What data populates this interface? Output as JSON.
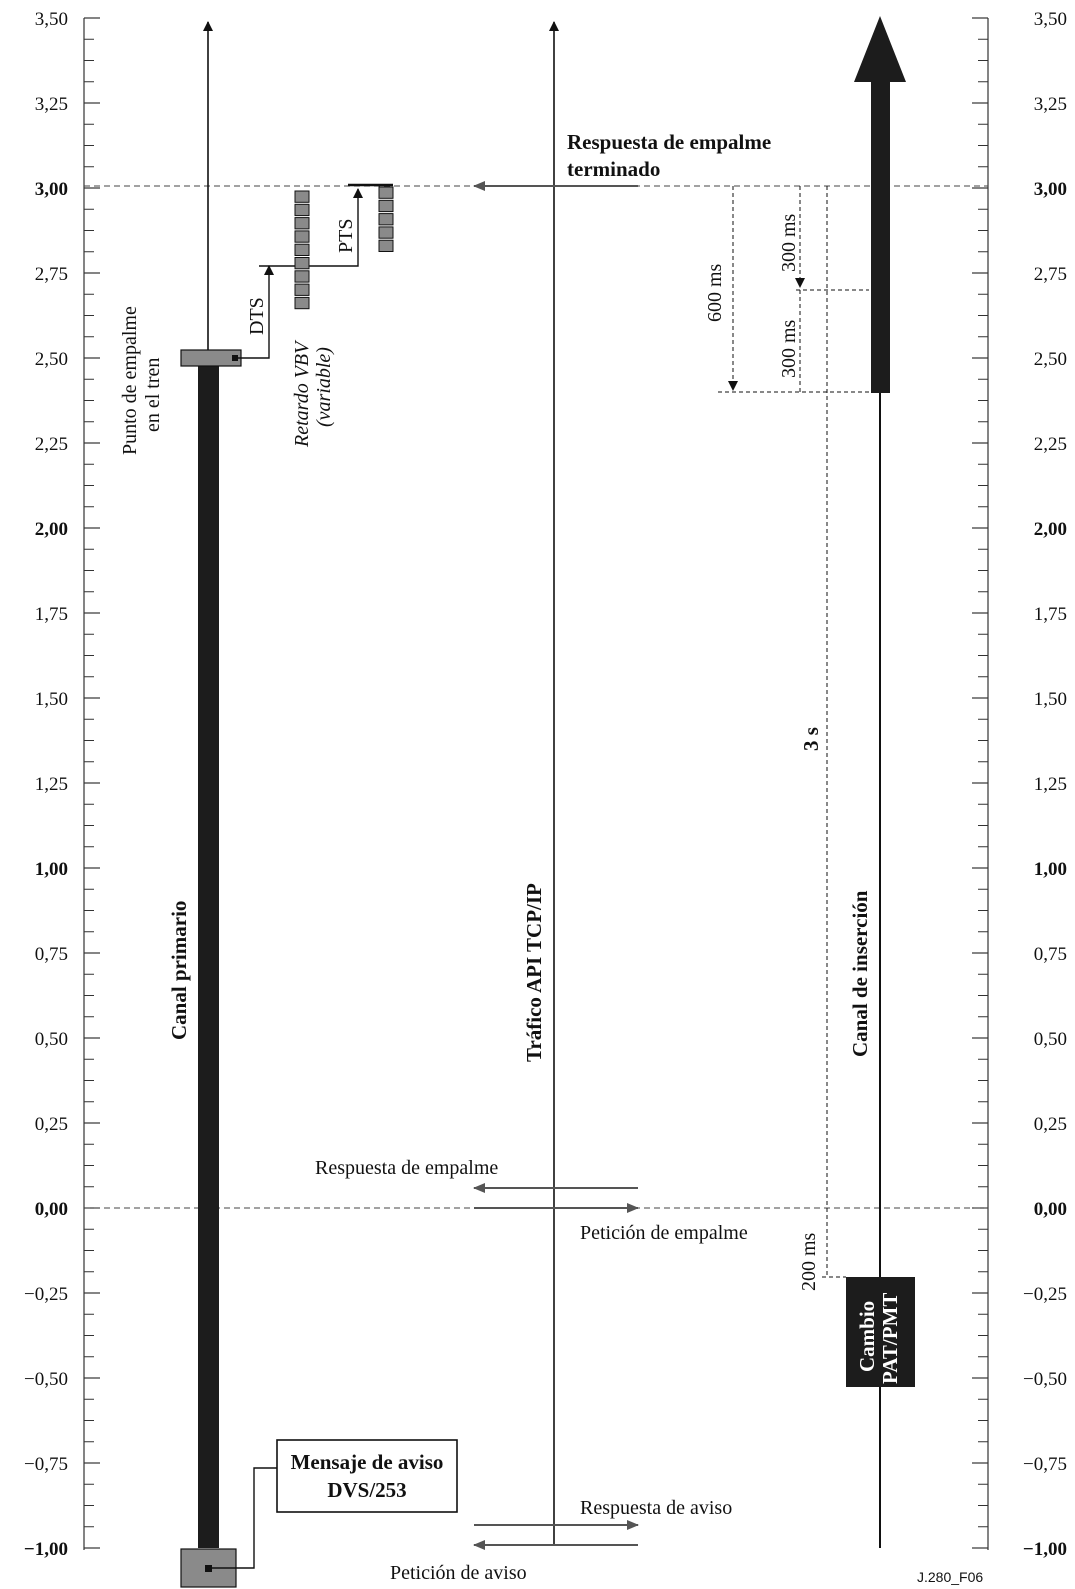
{
  "axis": {
    "ticks": [
      {
        "v": 3.5,
        "label": "3,50",
        "bold": false
      },
      {
        "v": 3.25,
        "label": "3,25",
        "bold": false
      },
      {
        "v": 3.0,
        "label": "3,00",
        "bold": true
      },
      {
        "v": 2.75,
        "label": "2,75",
        "bold": false
      },
      {
        "v": 2.5,
        "label": "2,50",
        "bold": false
      },
      {
        "v": 2.25,
        "label": "2,25",
        "bold": false
      },
      {
        "v": 2.0,
        "label": "2,00",
        "bold": true
      },
      {
        "v": 1.75,
        "label": "1,75",
        "bold": false
      },
      {
        "v": 1.5,
        "label": "1,50",
        "bold": false
      },
      {
        "v": 1.25,
        "label": "1,25",
        "bold": false
      },
      {
        "v": 1.0,
        "label": "1,00",
        "bold": true
      },
      {
        "v": 0.75,
        "label": "0,75",
        "bold": false
      },
      {
        "v": 0.5,
        "label": "0,50",
        "bold": false
      },
      {
        "v": 0.25,
        "label": "0,25",
        "bold": false
      },
      {
        "v": 0.0,
        "label": "0,00",
        "bold": true
      },
      {
        "v": -0.25,
        "label": "−0,25",
        "bold": false
      },
      {
        "v": -0.5,
        "label": "−0,50",
        "bold": false
      },
      {
        "v": -0.75,
        "label": "−0,75",
        "bold": false
      },
      {
        "v": -1.0,
        "label": "−1,00",
        "bold": true
      }
    ]
  },
  "lanes": {
    "primary": "Canal primario",
    "api": "Tráfico API TCP/IP",
    "insertion": "Canal de inserción"
  },
  "labels": {
    "splice_point_line1": "Punto de empalme",
    "splice_point_line2": "en el tren",
    "dts": "DTS",
    "pts": "PTS",
    "vbv_line1": "Retardo VBV",
    "vbv_line2": "(variable)",
    "splice_done_line1": "Respuesta de empalme",
    "splice_done_line2": "terminado",
    "ms600": "600 ms",
    "ms300_top": "300 ms",
    "ms300_bottom": "300 ms",
    "s3": "3 s",
    "ms200": "200 ms",
    "splice_response": "Respuesta de empalme",
    "splice_request": "Petición de empalme",
    "pat_line1": "Cambio",
    "pat_line2": "PAT/PMT",
    "notice_line1": "Mensaje de aviso",
    "notice_line2": "DVS/253",
    "notice_response": "Respuesta de aviso",
    "notice_request": "Petición de aviso",
    "figure_id": "J.280_F06"
  }
}
